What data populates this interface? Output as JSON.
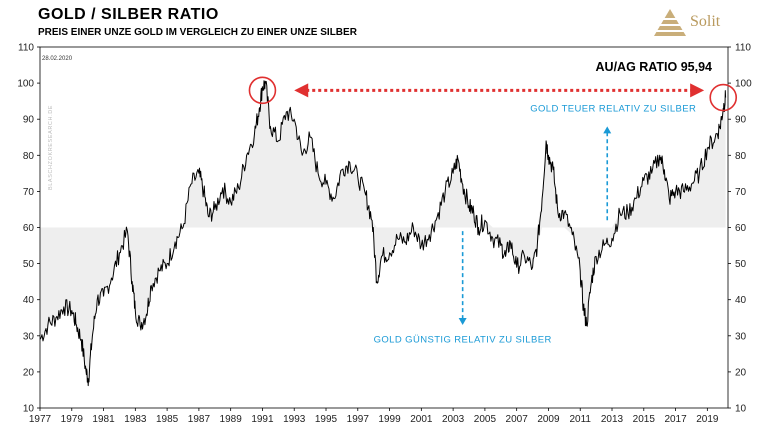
{
  "header": {
    "title": "GOLD / SILBER RATIO",
    "subtitle": "PREIS EINER UNZE GOLD IM VERGLEICH ZU EINER UNZE SILBER"
  },
  "brand": {
    "name": "Solit",
    "logo_icon": "pyramid-logo-icon",
    "color": "#b99a5e"
  },
  "date_stamp": "28.02.2020",
  "watermark": "BLASCHZOKRESEARCH.DE",
  "colors": {
    "line": "#000000",
    "band": "#eeeeee",
    "accent_red": "#e03030",
    "accent_blue": "#1a9ad6"
  },
  "chart_data": {
    "type": "line",
    "title": "GOLD / SILBER RATIO",
    "subtitle": "PREIS EINER UNZE GOLD IM VERGLEICH ZU EINER UNZE SILBER",
    "xlabel": "",
    "ylabel": "",
    "ylim": [
      10,
      110
    ],
    "xlim": [
      1977,
      2020.3
    ],
    "y_ticks": [
      10,
      20,
      30,
      40,
      50,
      60,
      70,
      80,
      90,
      100,
      110
    ],
    "x_tick_labels": [
      "1977",
      "1979",
      "1981",
      "1983",
      "1985",
      "1987",
      "1989",
      "1991",
      "1993",
      "1995",
      "1997",
      "1999",
      "2001",
      "2003",
      "2005",
      "2007",
      "2009",
      "2011",
      "2013",
      "2015",
      "2017",
      "2019"
    ],
    "grid": false,
    "shaded_band": {
      "from": 60,
      "to": 100
    },
    "series": [
      {
        "x": [
          1977.0,
          1977.5,
          1978.0,
          1978.5,
          1979.0,
          1979.3,
          1979.6,
          1979.9,
          1980.05,
          1980.3,
          1980.6,
          1981.0,
          1981.5,
          1982.0,
          1982.5,
          1982.8,
          1983.0,
          1983.3,
          1983.7,
          1984.0,
          1984.5,
          1985.0,
          1985.5,
          1986.0,
          1986.5,
          1987.0,
          1987.3,
          1987.6,
          1988.0,
          1988.5,
          1989.0,
          1989.5,
          1990.0,
          1990.5,
          1990.8,
          1991.0,
          1991.2,
          1991.5,
          1992.0,
          1992.5,
          1993.0,
          1993.5,
          1994.0,
          1994.5,
          1995.0,
          1995.5,
          1996.0,
          1996.5,
          1997.0,
          1997.5,
          1997.9,
          1998.2,
          1998.5,
          1999.0,
          1999.5,
          2000.0,
          2000.5,
          2001.0,
          2001.5,
          2002.0,
          2002.5,
          2003.0,
          2003.3,
          2003.6,
          2004.0,
          2004.3,
          2004.6,
          2005.0,
          2005.5,
          2006.0,
          2006.3,
          2006.6,
          2007.0,
          2007.5,
          2008.0,
          2008.3,
          2008.6,
          2008.85,
          2009.0,
          2009.3,
          2009.6,
          2010.0,
          2010.5,
          2011.0,
          2011.2,
          2011.4,
          2011.7,
          2012.0,
          2012.5,
          2013.0,
          2013.5,
          2014.0,
          2014.5,
          2015.0,
          2015.5,
          2016.0,
          2016.3,
          2016.6,
          2017.0,
          2017.5,
          2018.0,
          2018.5,
          2019.0,
          2019.5,
          2019.8,
          2020.0,
          2020.15
        ],
        "y": [
          29,
          33,
          35,
          38,
          37,
          33,
          29,
          20,
          18,
          30,
          40,
          41,
          46,
          53,
          59,
          45,
          37,
          33,
          36,
          44,
          48,
          50,
          56,
          60,
          72,
          75,
          70,
          63,
          65,
          71,
          67,
          71,
          80,
          86,
          93,
          99,
          100,
          88,
          84,
          92,
          90,
          80,
          85,
          75,
          72,
          68,
          76,
          78,
          74,
          69,
          62,
          45,
          52,
          53,
          57,
          56,
          60,
          55,
          58,
          63,
          70,
          75,
          79,
          72,
          66,
          64,
          60,
          62,
          57,
          55,
          52,
          56,
          49,
          52,
          49,
          55,
          68,
          84,
          80,
          76,
          64,
          64,
          58,
          48,
          38,
          33,
          45,
          52,
          55,
          57,
          64,
          64,
          68,
          73,
          75,
          80,
          76,
          68,
          70,
          70,
          72,
          75,
          82,
          85,
          88,
          93,
          96
        ]
      }
    ],
    "annotations": [
      {
        "text": "AU/AG RATIO 95,94"
      },
      {
        "text": "GOLD TEUER RELATIV ZU SILBER",
        "direction": "up",
        "x": 2012.7,
        "from": 62,
        "to": 88
      },
      {
        "text": "GOLD GÜNSTIG RELATIV ZU SILBER",
        "direction": "down",
        "x": 2003.6,
        "from": 59,
        "to": 33
      },
      {
        "type": "double-arrow",
        "from_x": 1993.0,
        "to_x": 2018.8,
        "y": 98
      },
      {
        "type": "circle",
        "x": 1991.0,
        "y": 98
      },
      {
        "type": "circle",
        "x": 2020.0,
        "y": 96
      }
    ]
  }
}
